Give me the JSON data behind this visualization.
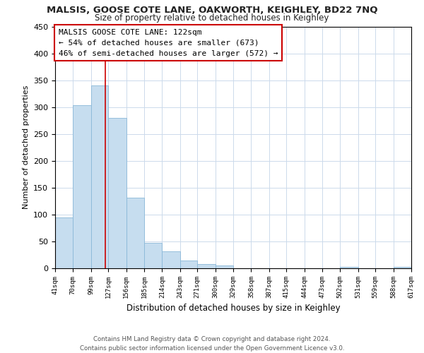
{
  "title": "MALSIS, GOOSE COTE LANE, OAKWORTH, KEIGHLEY, BD22 7NQ",
  "subtitle": "Size of property relative to detached houses in Keighley",
  "xlabel": "Distribution of detached houses by size in Keighley",
  "ylabel": "Number of detached properties",
  "bar_color": "#c6ddef",
  "bar_edge_color": "#8ab8d8",
  "property_line_x": 122,
  "property_line_color": "#cc0000",
  "annotation_title": "MALSIS GOOSE COTE LANE: 122sqm",
  "annotation_line1": "← 54% of detached houses are smaller (673)",
  "annotation_line2": "46% of semi-detached houses are larger (572) →",
  "bin_edges": [
    41,
    70,
    99,
    127,
    156,
    185,
    214,
    243,
    271,
    300,
    329,
    358,
    387,
    415,
    444,
    473,
    502,
    531,
    559,
    588,
    617
  ],
  "bin_heights": [
    95,
    303,
    340,
    280,
    132,
    47,
    31,
    14,
    8,
    5,
    0,
    0,
    0,
    0,
    0,
    0,
    2,
    0,
    0,
    2
  ],
  "ylim": [
    0,
    450
  ],
  "yticks": [
    0,
    50,
    100,
    150,
    200,
    250,
    300,
    350,
    400,
    450
  ],
  "footer_line1": "Contains HM Land Registry data © Crown copyright and database right 2024.",
  "footer_line2": "Contains public sector information licensed under the Open Government Licence v3.0.",
  "background_color": "#ffffff",
  "grid_color": "#ccdaeb"
}
